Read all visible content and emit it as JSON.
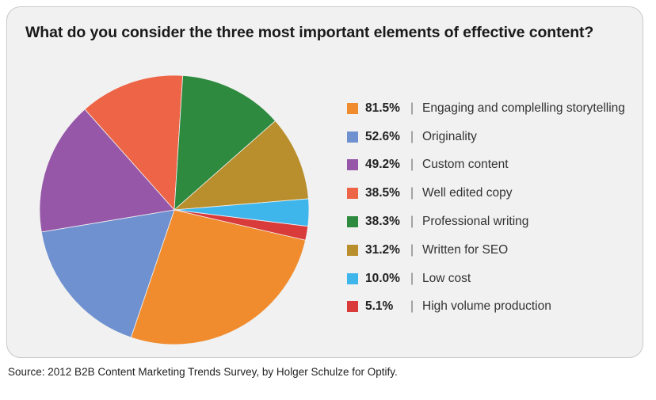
{
  "chart_data": {
    "type": "pie",
    "title": "What do you consider the three most important elements of effective content?",
    "legend_position": "right",
    "slices": [
      {
        "label": "Engaging and complelling storytelling",
        "value": 81.5,
        "value_label": "81.5%",
        "color": "#f08c2e"
      },
      {
        "label": "Originality",
        "value": 52.6,
        "value_label": "52.6%",
        "color": "#6f91d0"
      },
      {
        "label": "Custom content",
        "value": 49.2,
        "value_label": "49.2%",
        "color": "#9657a8"
      },
      {
        "label": "Well edited copy",
        "value": 38.5,
        "value_label": "38.5%",
        "color": "#ee6446"
      },
      {
        "label": "Professional writing",
        "value": 38.3,
        "value_label": "38.3%",
        "color": "#2e8a3e"
      },
      {
        "label": "Written for SEO",
        "value": 31.2,
        "value_label": "31.2%",
        "color": "#b88f2c"
      },
      {
        "label": "Low cost",
        "value": 10.0,
        "value_label": "10.0%",
        "color": "#3eb6ec"
      },
      {
        "label": "High volume production",
        "value": 5.1,
        "value_label": "5.1%",
        "color": "#d93b3b"
      }
    ]
  },
  "separator": "|",
  "source": "Source: 2012 B2B Content Marketing Trends Survey, by Holger Schulze for Optify."
}
